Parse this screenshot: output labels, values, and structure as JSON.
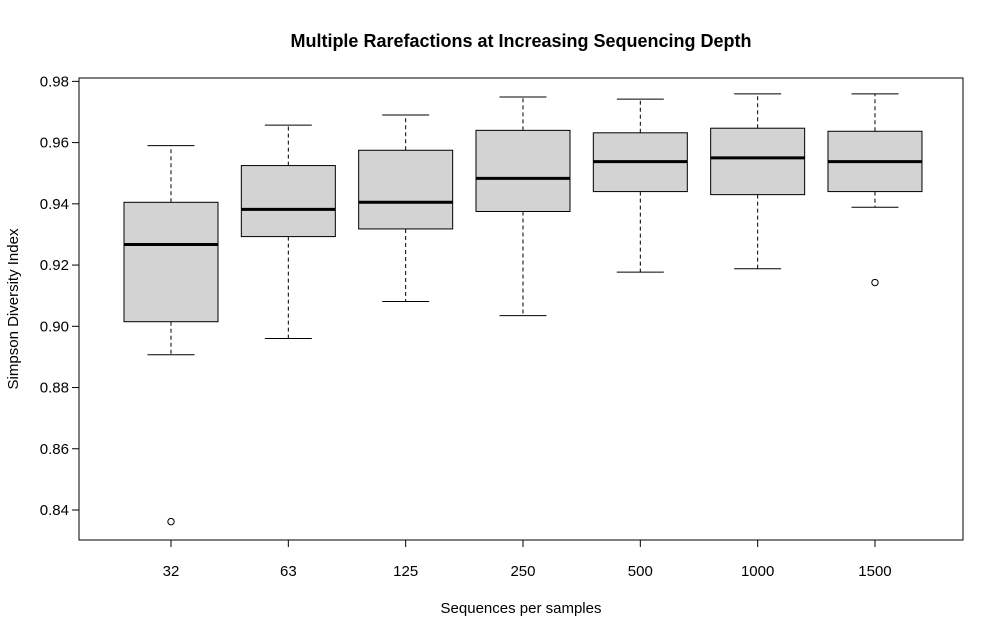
{
  "chart_data": {
    "type": "boxplot",
    "title": "Multiple Rarefactions at Increasing Sequencing Depth",
    "xlabel": "Sequences per samples",
    "ylabel": "Simpson Diversity Index",
    "categories": [
      "32",
      "63",
      "125",
      "250",
      "500",
      "1000",
      "1500"
    ],
    "ylim": [
      0.83,
      0.981
    ],
    "yticks": [
      0.84,
      0.86,
      0.88,
      0.9,
      0.92,
      0.94,
      0.96,
      0.98
    ],
    "ytick_labels": [
      "0.84",
      "0.86",
      "0.88",
      "0.90",
      "0.92",
      "0.94",
      "0.96",
      "0.98"
    ],
    "grid": false,
    "box_fill": "#d3d3d3",
    "boxes": [
      {
        "category": "32",
        "whisker_low": 0.8907,
        "q1": 0.9015,
        "median": 0.9267,
        "q3": 0.9405,
        "whisker_high": 0.959,
        "outliers": [
          0.8362
        ]
      },
      {
        "category": "63",
        "whisker_low": 0.896,
        "q1": 0.9293,
        "median": 0.9382,
        "q3": 0.9525,
        "whisker_high": 0.9657,
        "outliers": []
      },
      {
        "category": "125",
        "whisker_low": 0.9081,
        "q1": 0.9318,
        "median": 0.9405,
        "q3": 0.9575,
        "whisker_high": 0.969,
        "outliers": []
      },
      {
        "category": "250",
        "whisker_low": 0.9035,
        "q1": 0.9375,
        "median": 0.9483,
        "q3": 0.964,
        "whisker_high": 0.9749,
        "outliers": []
      },
      {
        "category": "500",
        "whisker_low": 0.9177,
        "q1": 0.944,
        "median": 0.9538,
        "q3": 0.9632,
        "whisker_high": 0.9742,
        "outliers": []
      },
      {
        "category": "1000",
        "whisker_low": 0.9188,
        "q1": 0.943,
        "median": 0.955,
        "q3": 0.9647,
        "whisker_high": 0.9759,
        "outliers": []
      },
      {
        "category": "1500",
        "whisker_low": 0.9389,
        "q1": 0.944,
        "median": 0.9538,
        "q3": 0.9637,
        "whisker_high": 0.9759,
        "outliers": [
          0.9143
        ]
      }
    ]
  }
}
